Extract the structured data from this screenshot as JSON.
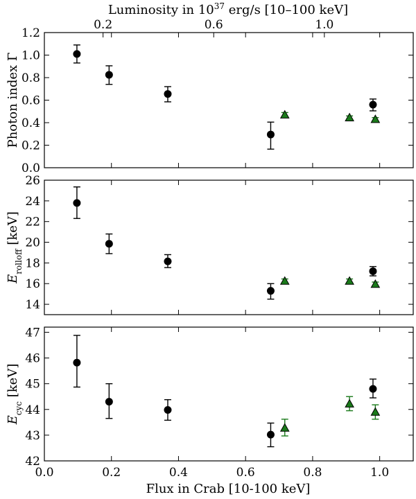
{
  "chart_data": {
    "type": "scatter",
    "top_axis": {
      "label_parts": [
        "Luminosity in 10",
        "37",
        " erg/s [10–100 keV]"
      ],
      "tick_labels": [
        "0.2",
        "0.6",
        "1.0"
      ],
      "tick_values": [
        0.2,
        0.6,
        1.0
      ],
      "tick_flux_positions": [
        0.175,
        0.505,
        0.835
      ]
    },
    "x_axis": {
      "label": "Flux in Crab [10-100 keV]",
      "range": [
        0.0,
        1.1
      ],
      "tick_values": [
        0.0,
        0.2,
        0.4,
        0.6,
        0.8,
        1.0
      ],
      "tick_labels": [
        "0.0",
        "0.2",
        "0.4",
        "0.6",
        "0.8",
        "1.0"
      ]
    },
    "colors": {
      "circle_series": "#000000",
      "triangle_series": "#1a7a1a",
      "triangle_edge": "#000000",
      "axes": "#000000"
    },
    "panels": [
      {
        "id": "photon-index",
        "ylabel_parts": [
          "Photon index Γ",
          "",
          ""
        ],
        "ylim": [
          0.0,
          1.2
        ],
        "tick_values": [
          0.0,
          0.2,
          0.4,
          0.6,
          0.8,
          1.0,
          1.2
        ],
        "tick_labels": [
          "0.0",
          "0.2",
          "0.4",
          "0.6",
          "0.8",
          "1.0",
          "1.2"
        ],
        "series": [
          {
            "name": "circles",
            "marker": "circle",
            "points": [
              {
                "x": 0.097,
                "y": 1.01,
                "lo": 0.93,
                "hi": 1.09
              },
              {
                "x": 0.193,
                "y": 0.825,
                "lo": 0.74,
                "hi": 0.905
              },
              {
                "x": 0.368,
                "y": 0.655,
                "lo": 0.585,
                "hi": 0.72
              },
              {
                "x": 0.675,
                "y": 0.295,
                "lo": 0.165,
                "hi": 0.405
              },
              {
                "x": 0.98,
                "y": 0.56,
                "lo": 0.505,
                "hi": 0.61
              }
            ]
          },
          {
            "name": "triangles",
            "marker": "triangle",
            "points": [
              {
                "x": 0.717,
                "y": 0.47,
                "lo": 0.455,
                "hi": 0.49
              },
              {
                "x": 0.91,
                "y": 0.445,
                "lo": 0.43,
                "hi": 0.46
              },
              {
                "x": 0.987,
                "y": 0.43,
                "lo": 0.415,
                "hi": 0.445
              }
            ]
          }
        ]
      },
      {
        "id": "e-rolloff",
        "ylabel_parts": [
          "E",
          "rolloff",
          " [keV]"
        ],
        "ylim": [
          13.0,
          26.0
        ],
        "tick_values": [
          14,
          16,
          18,
          20,
          22,
          24,
          26
        ],
        "tick_labels": [
          "14",
          "16",
          "18",
          "20",
          "22",
          "24",
          "26"
        ],
        "series": [
          {
            "name": "circles",
            "marker": "circle",
            "points": [
              {
                "x": 0.097,
                "y": 23.8,
                "lo": 22.3,
                "hi": 25.35
              },
              {
                "x": 0.193,
                "y": 19.85,
                "lo": 18.9,
                "hi": 20.8
              },
              {
                "x": 0.368,
                "y": 18.15,
                "lo": 17.55,
                "hi": 18.8
              },
              {
                "x": 0.675,
                "y": 15.3,
                "lo": 14.5,
                "hi": 16.0
              },
              {
                "x": 0.98,
                "y": 17.2,
                "lo": 16.75,
                "hi": 17.65
              }
            ]
          },
          {
            "name": "triangles",
            "marker": "triangle",
            "points": [
              {
                "x": 0.717,
                "y": 16.25,
                "lo": 16.05,
                "hi": 16.45
              },
              {
                "x": 0.91,
                "y": 16.25,
                "lo": 16.05,
                "hi": 16.45
              },
              {
                "x": 0.987,
                "y": 15.95,
                "lo": 15.75,
                "hi": 16.15
              }
            ]
          }
        ]
      },
      {
        "id": "e-cyc",
        "ylabel_parts": [
          "E",
          "cyc",
          " [keV]"
        ],
        "ylim": [
          42.0,
          47.2
        ],
        "tick_values": [
          42,
          43,
          44,
          45,
          46,
          47
        ],
        "tick_labels": [
          "42",
          "43",
          "44",
          "45",
          "46",
          "47"
        ],
        "series": [
          {
            "name": "circles",
            "marker": "circle",
            "points": [
              {
                "x": 0.097,
                "y": 45.82,
                "lo": 44.87,
                "hi": 46.88
              },
              {
                "x": 0.193,
                "y": 44.3,
                "lo": 43.65,
                "hi": 45.0
              },
              {
                "x": 0.368,
                "y": 43.98,
                "lo": 43.58,
                "hi": 44.38
              },
              {
                "x": 0.675,
                "y": 43.02,
                "lo": 42.55,
                "hi": 43.47
              },
              {
                "x": 0.98,
                "y": 44.8,
                "lo": 44.45,
                "hi": 45.18
              }
            ]
          },
          {
            "name": "triangles",
            "marker": "triangle",
            "points": [
              {
                "x": 0.717,
                "y": 43.28,
                "lo": 42.97,
                "hi": 43.62
              },
              {
                "x": 0.91,
                "y": 44.22,
                "lo": 43.95,
                "hi": 44.5
              },
              {
                "x": 0.987,
                "y": 43.9,
                "lo": 43.62,
                "hi": 44.18
              }
            ]
          }
        ]
      }
    ]
  }
}
